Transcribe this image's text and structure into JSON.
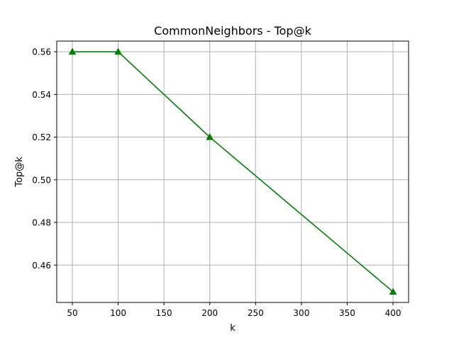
{
  "chart_data": {
    "type": "line",
    "title": "CommonNeighbors - Top@k",
    "xlabel": "k",
    "ylabel": "Top@k",
    "x": [
      50,
      100,
      200,
      400
    ],
    "series": [
      {
        "values": [
          0.56,
          0.56,
          0.52,
          0.4475
        ],
        "color": "#008000",
        "marker": "triangle-up"
      }
    ],
    "xlim": [
      33,
      417
    ],
    "ylim": [
      0.4425,
      0.565
    ],
    "xticks": [
      50,
      100,
      150,
      200,
      250,
      300,
      350,
      400
    ],
    "xtick_labels": [
      "50",
      "100",
      "150",
      "200",
      "250",
      "300",
      "350",
      "400"
    ],
    "yticks": [
      0.46,
      0.48,
      0.5,
      0.52,
      0.54,
      0.56
    ],
    "ytick_labels": [
      "0.46",
      "0.48",
      "0.50",
      "0.52",
      "0.54",
      "0.56"
    ],
    "grid": true
  }
}
